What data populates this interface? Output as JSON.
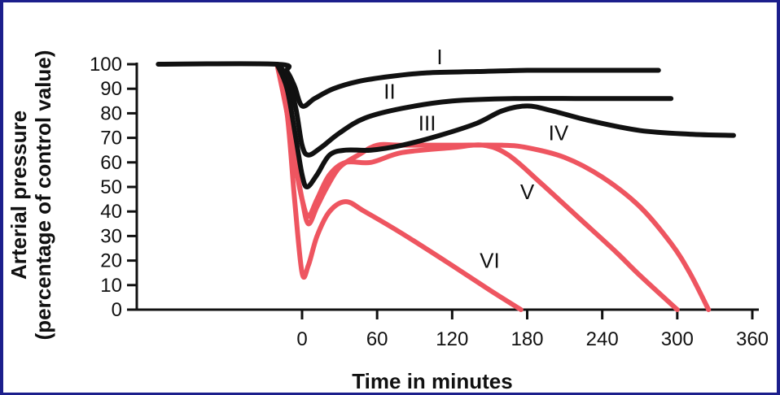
{
  "chart_data": {
    "type": "line",
    "xlabel": "Time in minutes",
    "ylabel_line1": "Arterial pressure",
    "ylabel_line2": "(percentage of control value)",
    "xlim": [
      -115,
      360
    ],
    "ylim": [
      0,
      100
    ],
    "x_ticks": [
      0,
      60,
      120,
      180,
      240,
      300,
      360
    ],
    "y_ticks": [
      0,
      10,
      20,
      30,
      40,
      50,
      60,
      70,
      80,
      90,
      100
    ],
    "colors": {
      "dark": "#111111",
      "red": "#ee5560",
      "background": "#1c1f8c"
    },
    "series": [
      {
        "name": "I",
        "color": "dark",
        "label_at": [
          110,
          100
        ],
        "x": [
          -115,
          -20,
          -12,
          -6,
          0,
          10,
          25,
          45,
          70,
          100,
          140,
          180,
          230,
          285
        ],
        "y": [
          100,
          100,
          97,
          91,
          83,
          86,
          90,
          93,
          95,
          96.5,
          97,
          97.5,
          97.5,
          97.5
        ]
      },
      {
        "name": "II",
        "color": "dark",
        "label_at": [
          70,
          86
        ],
        "x": [
          -20,
          -12,
          -5,
          0,
          5,
          15,
          30,
          50,
          80,
          120,
          170,
          230,
          295
        ],
        "y": [
          100,
          95,
          82,
          67,
          63,
          66,
          72,
          78,
          82,
          85,
          86,
          86,
          86
        ]
      },
      {
        "name": "III",
        "color": "dark",
        "label_at": [
          100,
          73
        ],
        "x": [
          -20,
          -12,
          -5,
          0,
          4,
          12,
          22,
          35,
          55,
          80,
          110,
          140,
          160,
          180,
          200,
          230,
          270,
          310,
          345
        ],
        "y": [
          100,
          90,
          70,
          55,
          50,
          55,
          63,
          65,
          65,
          67,
          71,
          76,
          81,
          83,
          81,
          77,
          73,
          71.5,
          71
        ]
      },
      {
        "name": "IV",
        "color": "red",
        "label_at": [
          205,
          69
        ],
        "x": [
          -20,
          -12,
          -6,
          0,
          5,
          12,
          20,
          30,
          45,
          60,
          80,
          120,
          160,
          180,
          210,
          240,
          270,
          295,
          310,
          325
        ],
        "y": [
          100,
          85,
          62,
          45,
          35,
          42,
          50,
          58,
          63,
          67,
          67,
          67,
          67,
          66,
          62,
          54,
          42,
          27,
          15,
          0
        ]
      },
      {
        "name": "V",
        "color": "red",
        "label_at": [
          180,
          45
        ],
        "x": [
          -20,
          -12,
          -5,
          0,
          5,
          12,
          22,
          35,
          55,
          80,
          120,
          145,
          165,
          190,
          220,
          250,
          270,
          300
        ],
        "y": [
          100,
          80,
          58,
          45,
          38,
          45,
          55,
          60,
          60,
          64,
          66,
          67,
          63,
          52,
          38,
          24,
          14,
          0
        ]
      },
      {
        "name": "VI",
        "color": "red",
        "label_at": [
          150,
          17
        ],
        "x": [
          -20,
          -12,
          -6,
          0,
          5,
          12,
          22,
          35,
          50,
          80,
          120,
          150,
          175
        ],
        "y": [
          100,
          80,
          45,
          15,
          18,
          30,
          40,
          44,
          40,
          31,
          18,
          8,
          0
        ]
      }
    ]
  }
}
